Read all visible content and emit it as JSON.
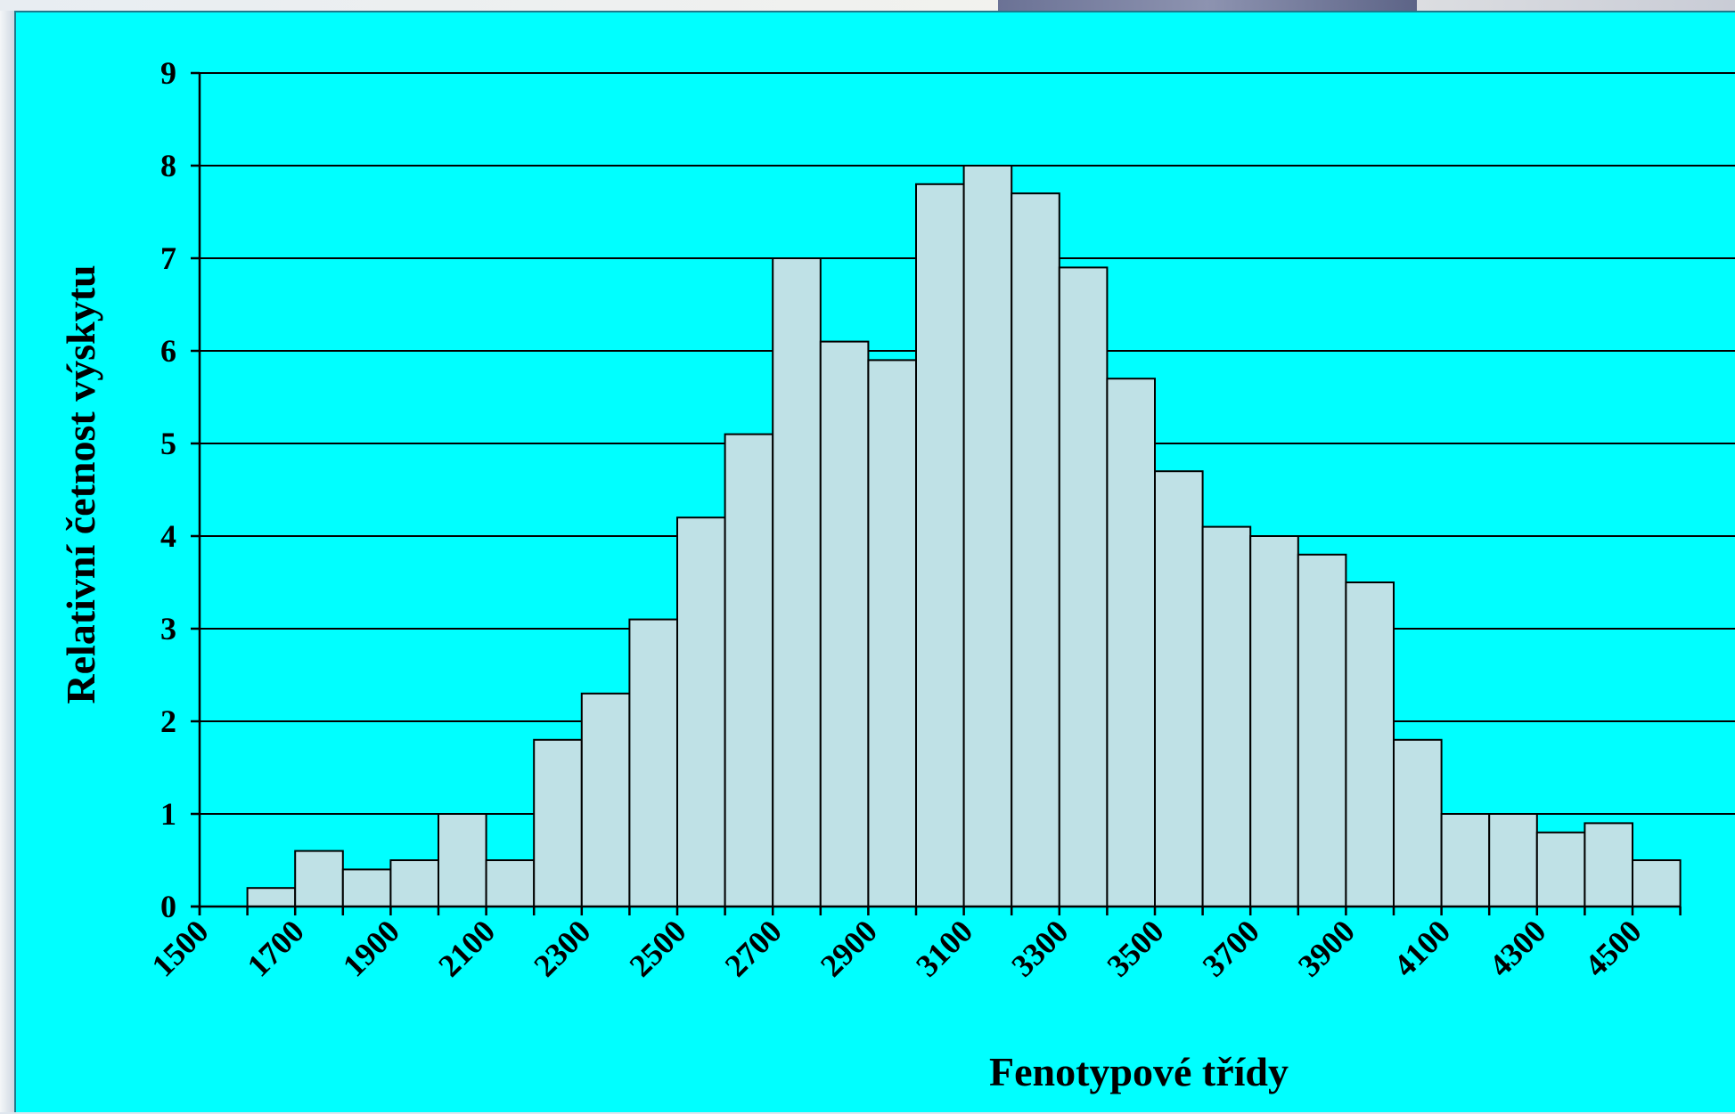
{
  "chart_data": {
    "type": "bar",
    "title": "",
    "xlabel": "Fenotypové třídy",
    "ylabel": "Relativní četnost výskytu",
    "ylim": [
      0,
      9
    ],
    "yticks": [
      0,
      1,
      2,
      3,
      4,
      5,
      6,
      7,
      8,
      9
    ],
    "xticks": [
      1500,
      1700,
      1900,
      2100,
      2300,
      2500,
      2700,
      2900,
      3100,
      3300,
      3500,
      3700,
      3900,
      4100,
      4300,
      4500
    ],
    "bin_width": 100,
    "bars": [
      {
        "x": 1600,
        "value": 0.2
      },
      {
        "x": 1700,
        "value": 0.6
      },
      {
        "x": 1800,
        "value": 0.4
      },
      {
        "x": 1900,
        "value": 0.5
      },
      {
        "x": 2000,
        "value": 1.0
      },
      {
        "x": 2100,
        "value": 0.5
      },
      {
        "x": 2200,
        "value": 1.8
      },
      {
        "x": 2300,
        "value": 2.3
      },
      {
        "x": 2400,
        "value": 3.1
      },
      {
        "x": 2500,
        "value": 4.2
      },
      {
        "x": 2600,
        "value": 5.1
      },
      {
        "x": 2700,
        "value": 7.0
      },
      {
        "x": 2800,
        "value": 6.1
      },
      {
        "x": 2900,
        "value": 5.9
      },
      {
        "x": 3000,
        "value": 7.8
      },
      {
        "x": 3100,
        "value": 8.0
      },
      {
        "x": 3200,
        "value": 7.7
      },
      {
        "x": 3300,
        "value": 6.9
      },
      {
        "x": 3400,
        "value": 5.7
      },
      {
        "x": 3500,
        "value": 4.7
      },
      {
        "x": 3600,
        "value": 4.1
      },
      {
        "x": 3700,
        "value": 4.0
      },
      {
        "x": 3800,
        "value": 3.8
      },
      {
        "x": 3900,
        "value": 3.5
      },
      {
        "x": 4000,
        "value": 1.8
      },
      {
        "x": 4100,
        "value": 1.0
      },
      {
        "x": 4200,
        "value": 1.0
      },
      {
        "x": 4300,
        "value": 0.8
      },
      {
        "x": 4400,
        "value": 0.9
      },
      {
        "x": 4500,
        "value": 0.5
      }
    ],
    "grid": true,
    "legend": "none",
    "colors": {
      "background": "#00ffff",
      "bar_fill": "#bfe1e6",
      "bar_stroke": "#000000",
      "grid": "#000000"
    }
  }
}
